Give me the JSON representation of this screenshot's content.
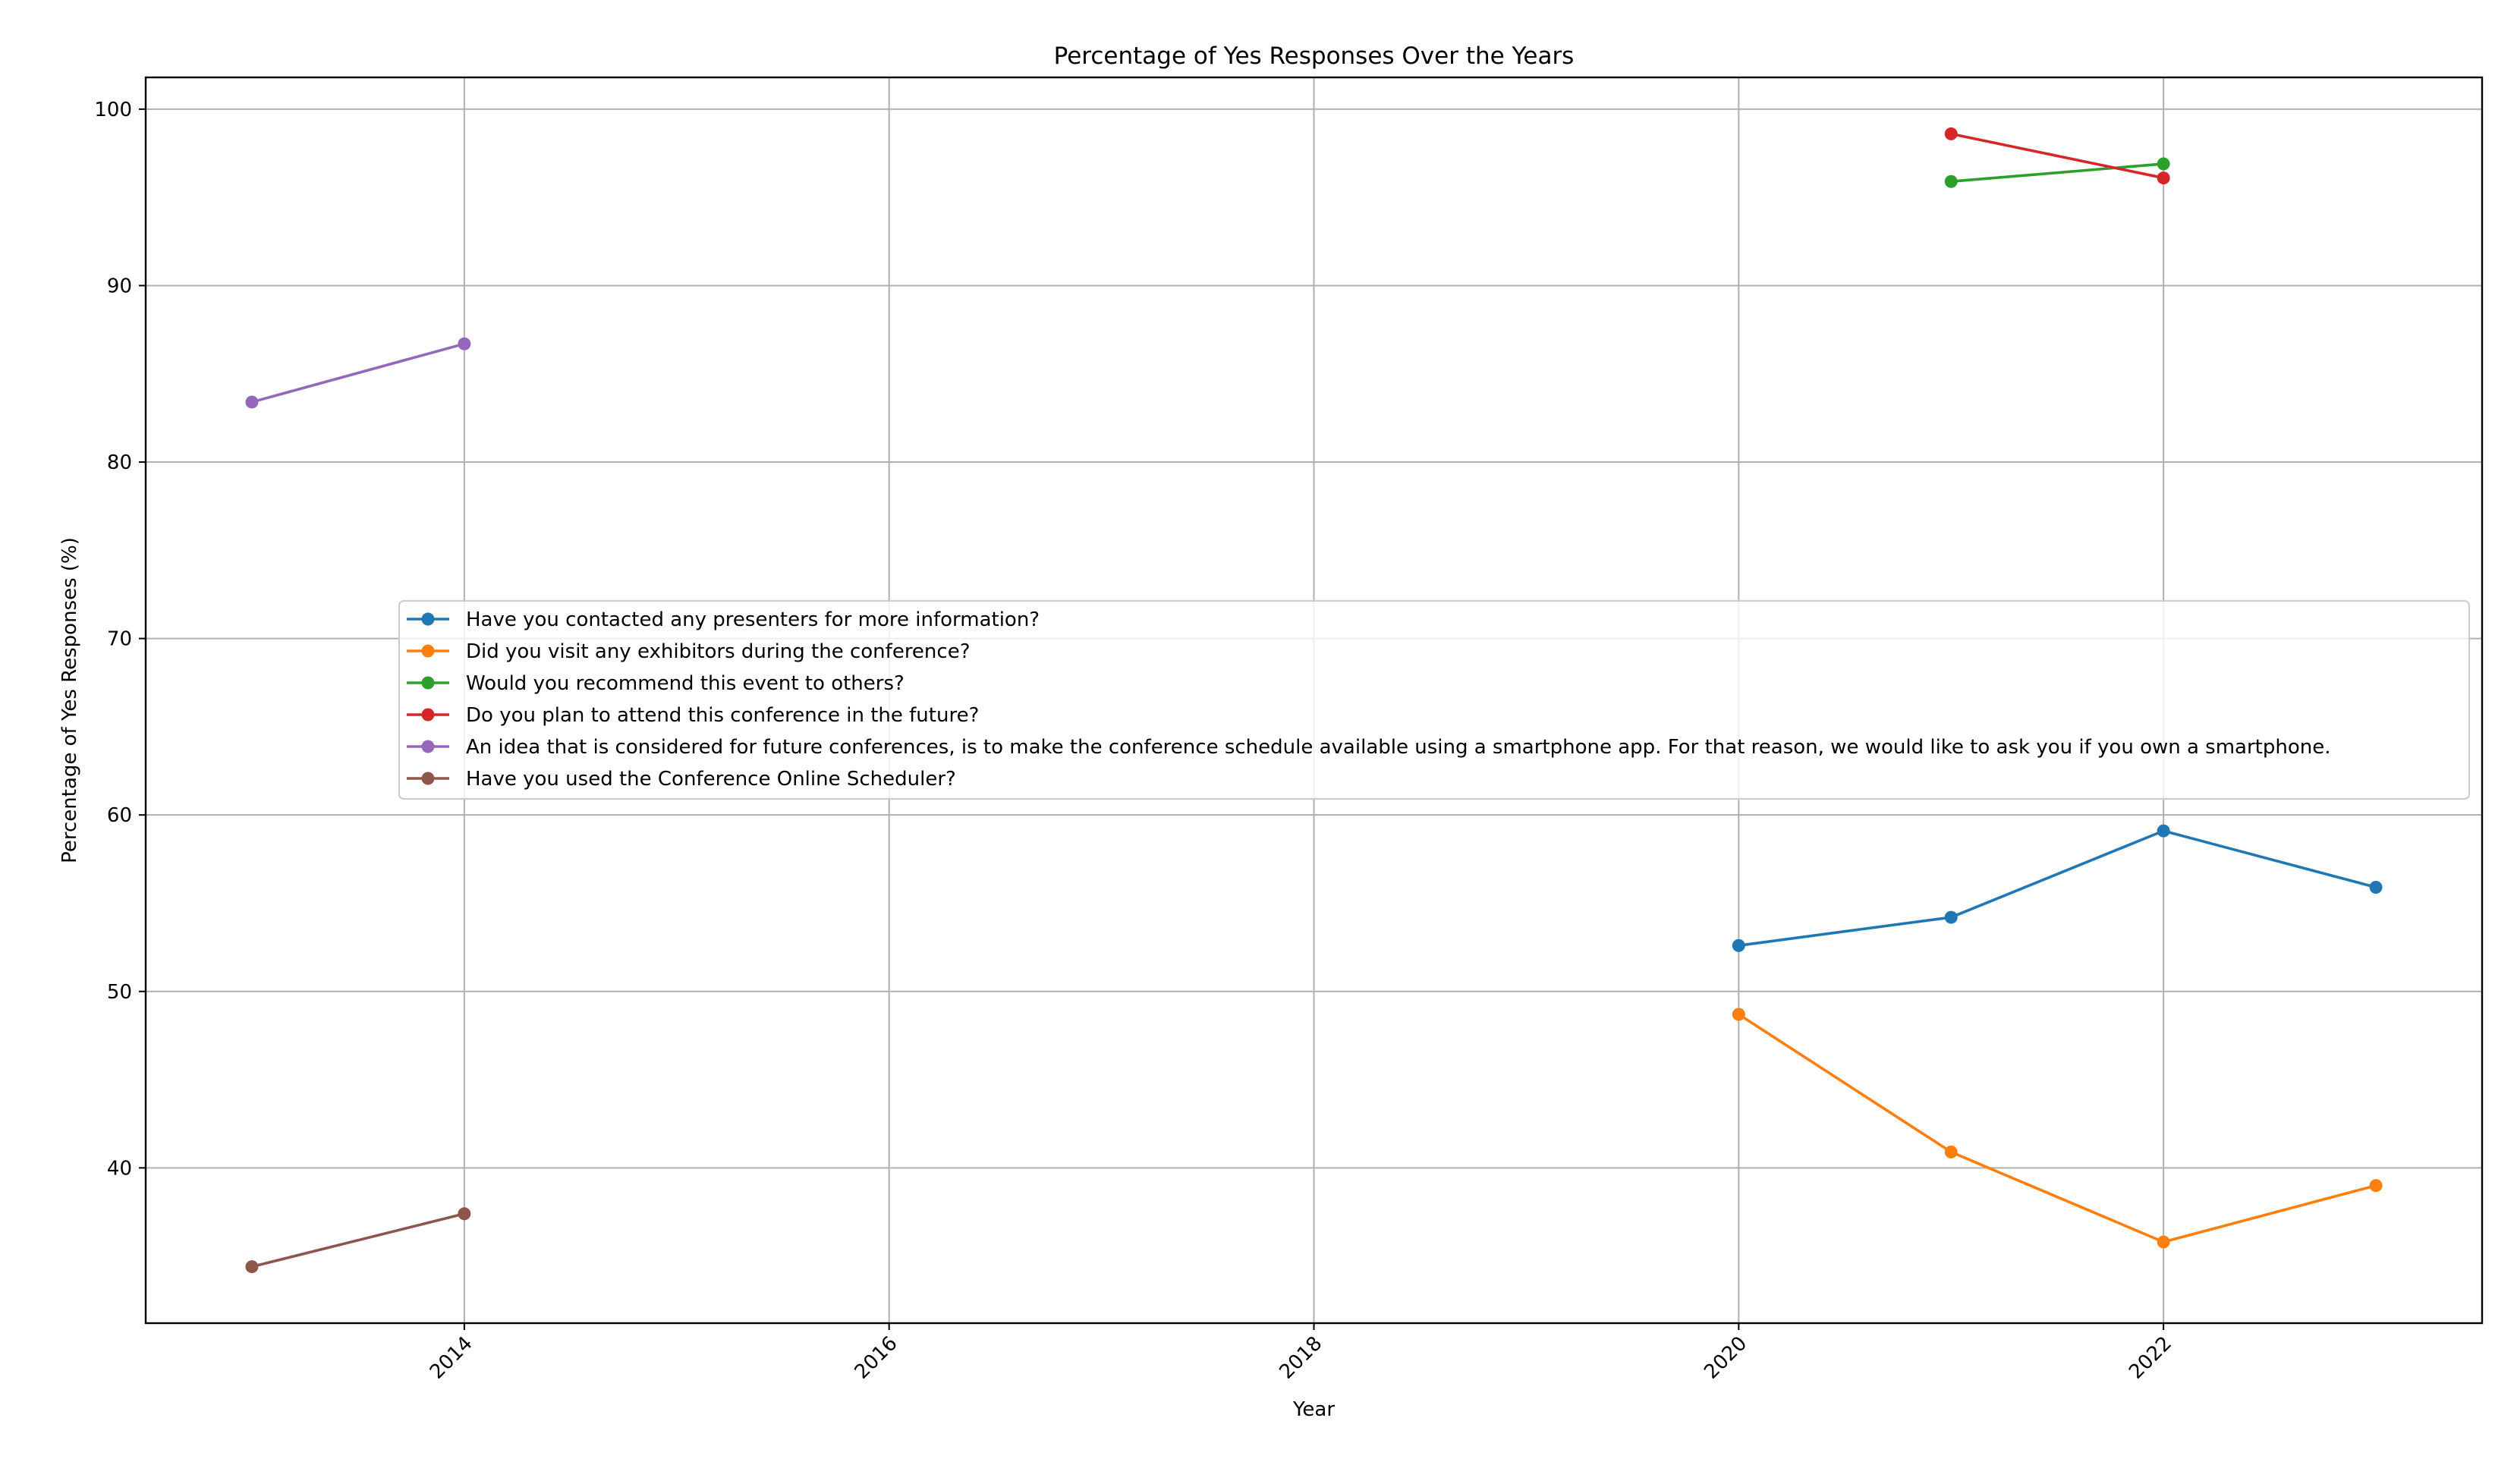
{
  "chart_data": {
    "type": "line",
    "title": "Percentage of Yes Responses Over the Years",
    "xlabel": "Year",
    "ylabel": "Percentage of Yes Responses (%)",
    "xlim": [
      2012.5,
      2023.5
    ],
    "ylim": [
      31.2,
      101.8
    ],
    "xticks": [
      2014,
      2016,
      2018,
      2020,
      2022
    ],
    "yticks": [
      40,
      50,
      60,
      70,
      80,
      90,
      100
    ],
    "grid": true,
    "legend_position": "center-right",
    "series": [
      {
        "name": "Have you contacted any presenters for more information?",
        "color": "#1f77b4",
        "points": [
          [
            2020,
            52.6
          ],
          [
            2021,
            54.2
          ],
          [
            2022,
            59.1
          ],
          [
            2023,
            55.9
          ]
        ]
      },
      {
        "name": "Did you visit any exhibitors during the conference?",
        "color": "#ff7f0e",
        "points": [
          [
            2020,
            48.7
          ],
          [
            2021,
            40.9
          ],
          [
            2022,
            35.8
          ],
          [
            2023,
            39.0
          ]
        ]
      },
      {
        "name": "Would you recommend this event to others?",
        "color": "#2ca02c",
        "points": [
          [
            2021,
            95.9
          ],
          [
            2022,
            96.9
          ]
        ]
      },
      {
        "name": "Do you plan to attend this conference in the future?",
        "color": "#d62728",
        "points": [
          [
            2021,
            98.6
          ],
          [
            2022,
            96.1
          ]
        ]
      },
      {
        "name": "An idea that is considered for future conferences, is to make the conference schedule available using a smartphone app. For that reason, we would like to ask you if you own a smartphone.",
        "color": "#9467bd",
        "points": [
          [
            2013,
            83.4
          ],
          [
            2014,
            86.7
          ]
        ]
      },
      {
        "name": "Have you used the Conference Online Scheduler?",
        "color": "#8c564b",
        "points": [
          [
            2013,
            34.4
          ],
          [
            2014,
            37.4
          ]
        ]
      }
    ]
  }
}
